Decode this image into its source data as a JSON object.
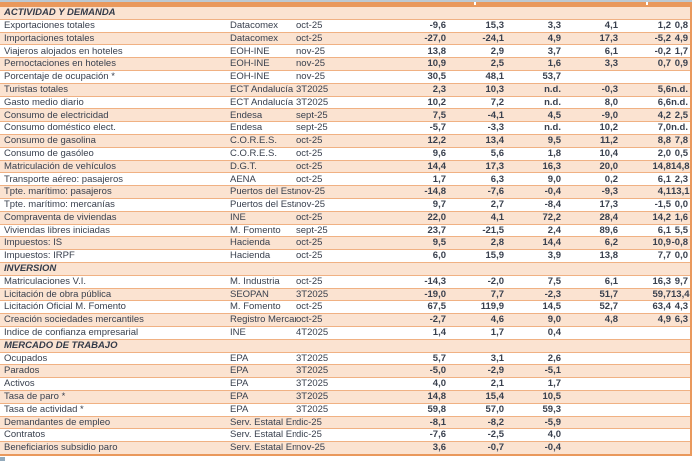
{
  "colors": {
    "band_orange": "#e9985c",
    "row_line_orange": "#f0b183",
    "stripe_peach": "#fbe3d1",
    "text_dark": "#39404e",
    "window_strip_blue": "#bcc9d3"
  },
  "table": {
    "column_roles": [
      "indicator",
      "source",
      "date",
      "value1",
      "value2",
      "value3",
      "value4",
      "value5",
      "value6"
    ],
    "sections": [
      {
        "title": "ACTIVIDAD Y DEMANDA",
        "rows": [
          {
            "indicator": "Exportaciones totales",
            "source": "Datacomex",
            "date": "oct-25",
            "values": [
              "-9,6",
              "15,3",
              "3,3",
              "4,1",
              "1,2",
              "0,8"
            ]
          },
          {
            "indicator": "Importaciones totales",
            "source": "Datacomex",
            "date": "oct-25",
            "values": [
              "-27,0",
              "-24,1",
              "4,9",
              "17,3",
              "-5,2",
              "4,9"
            ]
          },
          {
            "indicator": "Viajeros alojados en hoteles",
            "source": "EOH-INE",
            "date": "nov-25",
            "values": [
              "13,8",
              "2,9",
              "3,7",
              "6,1",
              "-0,2",
              "1,7"
            ]
          },
          {
            "indicator": "Pernoctaciones en hoteles",
            "source": "EOH-INE",
            "date": "nov-25",
            "values": [
              "10,9",
              "2,5",
              "1,6",
              "3,3",
              "0,7",
              "0,9"
            ]
          },
          {
            "indicator": "Porcentaje de ocupación *",
            "source": "EOH-INE",
            "date": "nov-25",
            "values": [
              "30,5",
              "48,1",
              "53,7",
              "",
              "",
              ""
            ]
          },
          {
            "indicator": "Turistas totales",
            "source": "ECT Andalucía",
            "date": "3T2025",
            "values": [
              "2,3",
              "10,3",
              "n.d.",
              "-0,3",
              "5,6",
              "n.d."
            ]
          },
          {
            "indicator": "Gasto medio diario",
            "source": "ECT Andalucía",
            "date": "3T2025",
            "values": [
              "10,2",
              "7,2",
              "n.d.",
              "8,0",
              "6,6",
              "n.d."
            ]
          },
          {
            "indicator": "Consumo de electricidad",
            "source": "Endesa",
            "date": "sept-25",
            "values": [
              "7,5",
              "-4,1",
              "4,5",
              "-9,0",
              "4,2",
              "2,5"
            ]
          },
          {
            "indicator": "Consumo doméstico elect.",
            "source": "Endesa",
            "date": "sept-25",
            "values": [
              "-5,7",
              "-3,3",
              "n.d.",
              "10,2",
              "7,0",
              "n.d."
            ]
          },
          {
            "indicator": "Consumo de gasolina",
            "source": "C.O.R.E.S.",
            "date": "oct-25",
            "values": [
              "12,2",
              "13,4",
              "9,5",
              "11,2",
              "8,8",
              "7,8"
            ]
          },
          {
            "indicator": "Consumo de gasóleo",
            "source": "C.O.R.E.S.",
            "date": "oct-25",
            "values": [
              "9,6",
              "5,6",
              "1,8",
              "10,4",
              "2,0",
              "0,5"
            ]
          },
          {
            "indicator": "Matriculación de vehículos",
            "source": "D.G.T.",
            "date": "oct-25",
            "values": [
              "14,4",
              "17,3",
              "16,3",
              "20,0",
              "14,8",
              "14,8"
            ]
          },
          {
            "indicator": "Transporte aéreo: pasajeros",
            "source": "AENA",
            "date": "oct-25",
            "values": [
              "1,7",
              "6,3",
              "9,0",
              "0,2",
              "6,1",
              "2,3"
            ]
          },
          {
            "indicator": "Tpte. marítimo: pasajeros",
            "source": "Puertos del Estado",
            "date": "nov-25",
            "values": [
              "-14,8",
              "-7,6",
              "-0,4",
              "-9,3",
              "4,1",
              "13,1"
            ]
          },
          {
            "indicator": "Tpte. marítimo: mercanías",
            "source": "Puertos del Estado",
            "date": "nov-25",
            "values": [
              "9,7",
              "2,7",
              "-8,4",
              "17,3",
              "-1,5",
              "0,0"
            ]
          },
          {
            "indicator": "Compraventa de viviendas",
            "source": "INE",
            "date": "oct-25",
            "values": [
              "22,0",
              "4,1",
              "72,2",
              "28,4",
              "14,2",
              "1,6"
            ]
          },
          {
            "indicator": "Viviendas libres iniciadas",
            "source": "M. Fomento",
            "date": "sept-25",
            "values": [
              "23,7",
              "-21,5",
              "2,4",
              "89,6",
              "6,1",
              "5,5"
            ]
          },
          {
            "indicator": "Impuestos: IS",
            "source": "Hacienda",
            "date": "oct-25",
            "values": [
              "9,5",
              "2,8",
              "14,4",
              "6,2",
              "10,9",
              "-0,8"
            ]
          },
          {
            "indicator": "Impuestos: IRPF",
            "source": "Hacienda",
            "date": "oct-25",
            "values": [
              "6,0",
              "15,9",
              "3,9",
              "13,8",
              "7,7",
              "0,0"
            ]
          }
        ]
      },
      {
        "title": "INVERSIÓN",
        "rows": [
          {
            "indicator": "Matriculaciones V.I.",
            "source": "M. Industria",
            "date": "oct-25",
            "values": [
              "-14,3",
              "-2,0",
              "7,5",
              "6,1",
              "16,3",
              "9,7"
            ]
          },
          {
            "indicator": "Licitación de obra pública",
            "source": "SEOPAN",
            "date": "3T2025",
            "values": [
              "-19,0",
              "7,7",
              "-2,3",
              "51,7",
              "59,7",
              "13,4"
            ]
          },
          {
            "indicator": "Licitación Oficial M. Fomento",
            "source": "M. Fomento",
            "date": "oct-25",
            "values": [
              "67,5",
              "119,9",
              "14,5",
              "52,7",
              "63,4",
              "4,3"
            ]
          },
          {
            "indicator": "Creación sociedades mercantiles",
            "source": "Registro Mercantil",
            "date": "oct-25",
            "values": [
              "-2,7",
              "4,6",
              "9,0",
              "4,8",
              "4,9",
              "6,3"
            ]
          },
          {
            "indicator": "Índice de confianza empresarial",
            "source": "INE",
            "date": "4T2025",
            "values": [
              "1,4",
              "1,7",
              "0,4",
              "",
              "",
              ""
            ]
          }
        ]
      },
      {
        "title": "MERCADO DE TRABAJO",
        "rows": [
          {
            "indicator": "Ocupados",
            "source": "EPA",
            "date": "3T2025",
            "values": [
              "5,7",
              "3,1",
              "2,6",
              "",
              "",
              ""
            ]
          },
          {
            "indicator": "Parados",
            "source": "EPA",
            "date": "3T2025",
            "values": [
              "-5,0",
              "-2,9",
              "-5,1",
              "",
              "",
              ""
            ]
          },
          {
            "indicator": "Activos",
            "source": "EPA",
            "date": "3T2025",
            "values": [
              "4,0",
              "2,1",
              "1,7",
              "",
              "",
              ""
            ]
          },
          {
            "indicator": "Tasa de paro *",
            "source": "EPA",
            "date": "3T2025",
            "values": [
              "14,8",
              "15,4",
              "10,5",
              "",
              "",
              ""
            ]
          },
          {
            "indicator": "Tasa de actividad *",
            "source": "EPA",
            "date": "3T2025",
            "values": [
              "59,8",
              "57,0",
              "59,3",
              "",
              "",
              ""
            ]
          },
          {
            "indicator": "Demandantes de empleo",
            "source": "Serv. Estatal Empleo",
            "date": "dic-25",
            "values": [
              "-8,1",
              "-8,2",
              "-5,9",
              "",
              "",
              ""
            ]
          },
          {
            "indicator": "Contratos",
            "source": "Serv. Estatal Empleo",
            "date": "dic-25",
            "values": [
              "-7,6",
              "-2,5",
              "4,0",
              "",
              "",
              ""
            ]
          },
          {
            "indicator": "Beneficiarios subsidio paro",
            "source": "Serv. Estatal Empleo",
            "date": "nov-25",
            "values": [
              "3,6",
              "-0,7",
              "-0,4",
              "",
              "",
              ""
            ]
          }
        ]
      }
    ]
  }
}
